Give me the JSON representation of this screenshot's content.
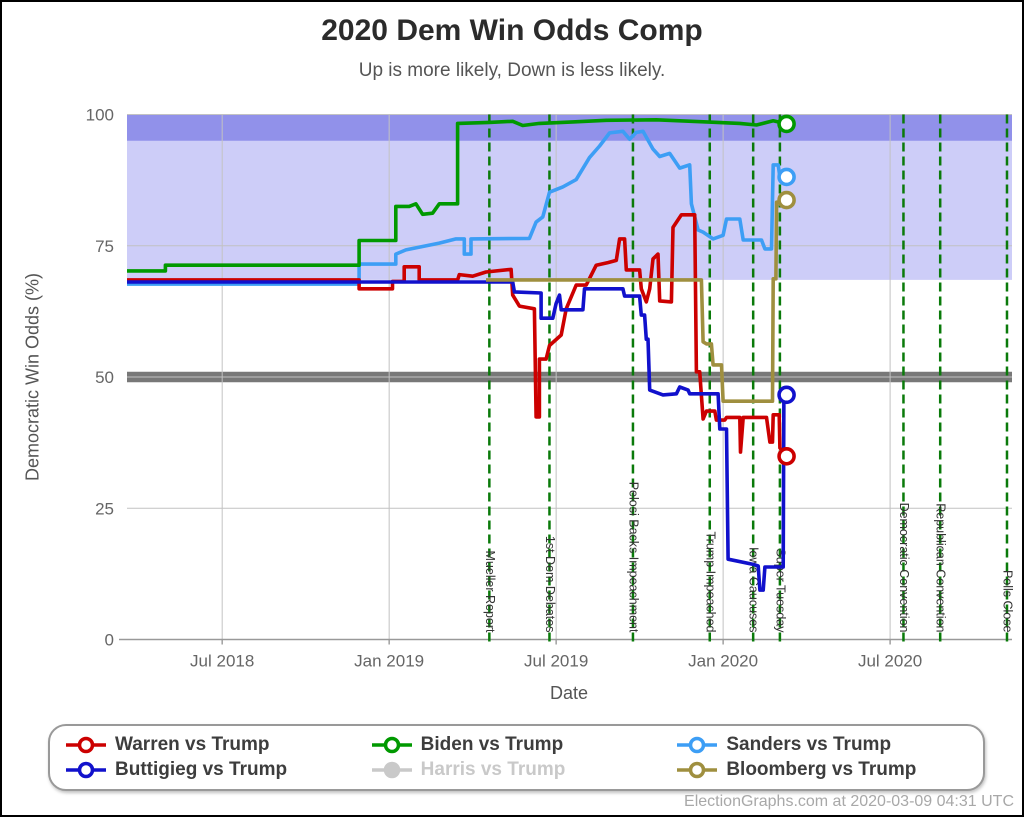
{
  "page": {
    "title": "2020 Dem Win Odds Comp",
    "subtitle": "Up is more likely, Down is less likely.",
    "footer": "ElectionGraphs.com at 2020-03-09 04:31 UTC"
  },
  "legend": {
    "items": [
      {
        "label": "Warren vs Trump",
        "color": "#cc0000",
        "marker": "open",
        "dimmed": false
      },
      {
        "label": "Buttigieg vs Trump",
        "color": "#1111cc",
        "marker": "open",
        "dimmed": false
      },
      {
        "label": "Biden vs Trump",
        "color": "#009900",
        "marker": "open",
        "dimmed": false
      },
      {
        "label": "Harris vs Trump",
        "color": "#c9c9c9",
        "marker": "solid",
        "dimmed": true
      },
      {
        "label": "Sanders vs Trump",
        "color": "#3d9ef5",
        "marker": "open",
        "dimmed": false
      },
      {
        "label": "Bloomberg vs Trump",
        "color": "#9f8f3f",
        "marker": "open",
        "dimmed": false
      }
    ]
  },
  "chart_data": {
    "type": "line",
    "title": "2020 Dem Win Odds Comp",
    "subtitle": "Up is more likely, Down is less likely.",
    "xlabel": "Date",
    "ylabel": "Democratic Win Odds (%)",
    "x_domain": [
      2018.215,
      2020.865
    ],
    "y_domain": [
      0,
      100
    ],
    "x_ticks": [
      {
        "value": 2018.5,
        "label": "Jul 2018"
      },
      {
        "value": 2019.0,
        "label": "Jan 2019"
      },
      {
        "value": 2019.5,
        "label": "Jul 2019"
      },
      {
        "value": 2020.0,
        "label": "Jan 2020"
      },
      {
        "value": 2020.5,
        "label": "Jul 2020"
      }
    ],
    "y_ticks": [
      0,
      25,
      50,
      75,
      100
    ],
    "grid": true,
    "legend_position": "bottom",
    "bands": [
      {
        "name": "likely-dem",
        "from": 68.5,
        "to": 100,
        "color": "#cdcdf8"
      },
      {
        "name": "solid-dem",
        "from": 95,
        "to": 100,
        "color": "#9191ea"
      },
      {
        "name": "tossup",
        "from": 49,
        "to": 51,
        "color": "#787878"
      }
    ],
    "events": [
      {
        "label": "Mueller Report",
        "year": 2019.3
      },
      {
        "label": "1st Dem Debates",
        "year": 2019.48
      },
      {
        "label": "Pelosi Backs Impeachment",
        "year": 2019.73
      },
      {
        "label": "Trump Impeached",
        "year": 2019.96
      },
      {
        "label": "Iowa Caucuses",
        "year": 2020.09
      },
      {
        "label": "Super Tuesday",
        "year": 2020.17
      },
      {
        "label": "Democratic Convention",
        "year": 2020.54
      },
      {
        "label": "Republican Convention",
        "year": 2020.65
      },
      {
        "label": "Polls Close",
        "year": 2020.85
      }
    ],
    "series": [
      {
        "name": "Sanders vs Trump",
        "color": "#3d9ef5",
        "hidden": false,
        "end_value": 88.1,
        "points": [
          [
            2018.215,
            67.7
          ],
          [
            2018.91,
            67.7
          ],
          [
            2018.91,
            71.5
          ],
          [
            2019.02,
            71.5
          ],
          [
            2019.02,
            73.4
          ],
          [
            2019.05,
            74.2
          ],
          [
            2019.15,
            75.5
          ],
          [
            2019.2,
            76.3
          ],
          [
            2019.225,
            76.3
          ],
          [
            2019.225,
            73.4
          ],
          [
            2019.245,
            73.4
          ],
          [
            2019.245,
            76.3
          ],
          [
            2019.42,
            76.4
          ],
          [
            2019.44,
            79.5
          ],
          [
            2019.46,
            80.5
          ],
          [
            2019.48,
            85.2
          ],
          [
            2019.52,
            86.2
          ],
          [
            2019.56,
            87.6
          ],
          [
            2019.6,
            91.8
          ],
          [
            2019.63,
            94.0
          ],
          [
            2019.66,
            96.5
          ],
          [
            2019.7,
            96.8
          ],
          [
            2019.72,
            95.3
          ],
          [
            2019.74,
            96.6
          ],
          [
            2019.76,
            96.8
          ],
          [
            2019.79,
            93.4
          ],
          [
            2019.81,
            92.0
          ],
          [
            2019.84,
            92.6
          ],
          [
            2019.87,
            89.8
          ],
          [
            2019.9,
            90.4
          ],
          [
            2019.905,
            83.0
          ],
          [
            2019.925,
            78.0
          ],
          [
            2019.94,
            77.6
          ],
          [
            2019.97,
            76.3
          ],
          [
            2020.0,
            77.0
          ],
          [
            2020.01,
            80.1
          ],
          [
            2020.05,
            80.1
          ],
          [
            2020.06,
            76.1
          ],
          [
            2020.115,
            76.1
          ],
          [
            2020.125,
            74.4
          ],
          [
            2020.145,
            74.4
          ],
          [
            2020.15,
            90.4
          ],
          [
            2020.165,
            90.4
          ],
          [
            2020.17,
            88.1
          ],
          [
            2020.19,
            88.1
          ]
        ]
      },
      {
        "name": "Warren vs Trump",
        "color": "#cc0000",
        "hidden": false,
        "end_value": 34.9,
        "points": [
          [
            2018.215,
            68.5
          ],
          [
            2018.91,
            68.5
          ],
          [
            2018.91,
            66.8
          ],
          [
            2019.01,
            66.8
          ],
          [
            2019.01,
            68.2
          ],
          [
            2019.045,
            68.2
          ],
          [
            2019.045,
            71.0
          ],
          [
            2019.09,
            71.0
          ],
          [
            2019.09,
            68.5
          ],
          [
            2019.205,
            68.5
          ],
          [
            2019.21,
            69.5
          ],
          [
            2019.25,
            69.2
          ],
          [
            2019.29,
            70.0
          ],
          [
            2019.365,
            70.5
          ],
          [
            2019.37,
            65.6
          ],
          [
            2019.39,
            63.5
          ],
          [
            2019.435,
            63.0
          ],
          [
            2019.44,
            42.4
          ],
          [
            2019.45,
            42.4
          ],
          [
            2019.45,
            53.4
          ],
          [
            2019.47,
            53.4
          ],
          [
            2019.48,
            56.0
          ],
          [
            2019.515,
            58.0
          ],
          [
            2019.53,
            63.0
          ],
          [
            2019.56,
            67.5
          ],
          [
            2019.59,
            67.5
          ],
          [
            2019.62,
            71.3
          ],
          [
            2019.655,
            71.8
          ],
          [
            2019.68,
            72.2
          ],
          [
            2019.69,
            76.3
          ],
          [
            2019.705,
            76.3
          ],
          [
            2019.71,
            70.4
          ],
          [
            2019.75,
            70.4
          ],
          [
            2019.755,
            66.8
          ],
          [
            2019.77,
            64.3
          ],
          [
            2019.78,
            66.8
          ],
          [
            2019.79,
            72.5
          ],
          [
            2019.805,
            73.4
          ],
          [
            2019.81,
            64.5
          ],
          [
            2019.845,
            64.3
          ],
          [
            2019.85,
            78.5
          ],
          [
            2019.875,
            80.9
          ],
          [
            2019.915,
            80.9
          ],
          [
            2019.92,
            51.0
          ],
          [
            2019.93,
            51.0
          ],
          [
            2019.94,
            42.0
          ],
          [
            2019.95,
            43.5
          ],
          [
            2019.975,
            43.5
          ],
          [
            2019.98,
            41.8
          ],
          [
            2020.005,
            41.8
          ],
          [
            2020.01,
            42.3
          ],
          [
            2020.05,
            42.3
          ],
          [
            2020.052,
            35.7
          ],
          [
            2020.06,
            42.3
          ],
          [
            2020.13,
            42.3
          ],
          [
            2020.14,
            37.6
          ],
          [
            2020.148,
            37.6
          ],
          [
            2020.15,
            42.8
          ],
          [
            2020.168,
            42.8
          ],
          [
            2020.17,
            36.5
          ],
          [
            2020.19,
            34.9
          ]
        ]
      },
      {
        "name": "Buttigieg vs Trump",
        "color": "#1111cc",
        "hidden": false,
        "end_value": 46.6,
        "points": [
          [
            2018.215,
            68.1
          ],
          [
            2019.37,
            68.1
          ],
          [
            2019.375,
            66.2
          ],
          [
            2019.455,
            66.0
          ],
          [
            2019.455,
            61.2
          ],
          [
            2019.49,
            61.2
          ],
          [
            2019.5,
            64.0
          ],
          [
            2019.51,
            65.6
          ],
          [
            2019.515,
            62.8
          ],
          [
            2019.58,
            62.8
          ],
          [
            2019.585,
            66.8
          ],
          [
            2019.7,
            66.8
          ],
          [
            2019.705,
            65.4
          ],
          [
            2019.75,
            65.4
          ],
          [
            2019.755,
            61.8
          ],
          [
            2019.765,
            61.8
          ],
          [
            2019.77,
            57.2
          ],
          [
            2019.775,
            57.2
          ],
          [
            2019.78,
            47.5
          ],
          [
            2019.82,
            46.6
          ],
          [
            2019.86,
            46.8
          ],
          [
            2019.87,
            48.1
          ],
          [
            2019.895,
            47.5
          ],
          [
            2019.9,
            46.8
          ],
          [
            2019.985,
            46.8
          ],
          [
            2019.99,
            40.1
          ],
          [
            2020.01,
            40.1
          ],
          [
            2020.015,
            15.3
          ],
          [
            2020.09,
            14.3
          ],
          [
            2020.105,
            14.0
          ],
          [
            2020.11,
            9.4
          ],
          [
            2020.12,
            9.4
          ],
          [
            2020.125,
            13.8
          ],
          [
            2020.18,
            13.8
          ],
          [
            2020.182,
            47.1
          ],
          [
            2020.19,
            46.6
          ]
        ]
      },
      {
        "name": "Bloomberg vs Trump",
        "color": "#9f8f3f",
        "hidden": false,
        "end_value": 83.7,
        "points": [
          [
            2019.29,
            68.5
          ],
          [
            2019.935,
            68.5
          ],
          [
            2019.94,
            56.7
          ],
          [
            2019.95,
            56.3
          ],
          [
            2019.965,
            56.3
          ],
          [
            2019.97,
            52.3
          ],
          [
            2019.995,
            52.3
          ],
          [
            2020.0,
            45.4
          ],
          [
            2020.148,
            45.4
          ],
          [
            2020.15,
            68.7
          ],
          [
            2020.158,
            68.7
          ],
          [
            2020.16,
            83.3
          ],
          [
            2020.18,
            83.3
          ],
          [
            2020.19,
            83.7
          ]
        ]
      },
      {
        "name": "Biden vs Trump",
        "color": "#009900",
        "hidden": false,
        "end_value": 98.2,
        "points": [
          [
            2018.215,
            70.2
          ],
          [
            2018.33,
            70.2
          ],
          [
            2018.33,
            71.3
          ],
          [
            2018.91,
            71.3
          ],
          [
            2018.91,
            76.0
          ],
          [
            2019.02,
            76.0
          ],
          [
            2019.02,
            82.5
          ],
          [
            2019.06,
            82.5
          ],
          [
            2019.08,
            83.0
          ],
          [
            2019.1,
            81.0
          ],
          [
            2019.13,
            81.2
          ],
          [
            2019.15,
            83.0
          ],
          [
            2019.205,
            83.0
          ],
          [
            2019.205,
            98.3
          ],
          [
            2019.3,
            98.5
          ],
          [
            2019.37,
            98.7
          ],
          [
            2019.4,
            97.9
          ],
          [
            2019.45,
            98.3
          ],
          [
            2019.55,
            98.6
          ],
          [
            2019.65,
            98.9
          ],
          [
            2019.8,
            99.0
          ],
          [
            2019.95,
            98.6
          ],
          [
            2020.05,
            98.3
          ],
          [
            2020.1,
            98.0
          ],
          [
            2020.15,
            98.8
          ],
          [
            2020.19,
            98.2
          ]
        ]
      },
      {
        "name": "Harris vs Trump",
        "color": "#c9c9c9",
        "hidden": true,
        "end_value": null,
        "points": []
      }
    ],
    "event_line_color": "#0a7a0a",
    "gridline_color": "#c2c2c2",
    "axis_color": "#999999",
    "tick_label_color": "#666666"
  }
}
